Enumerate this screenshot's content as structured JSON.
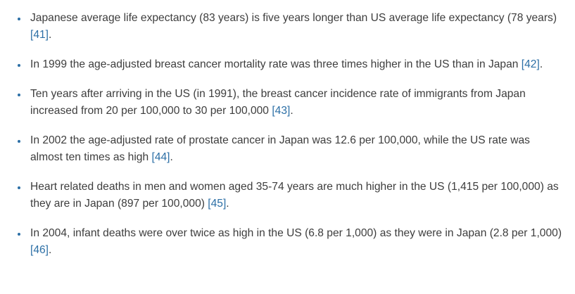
{
  "colors": {
    "text": "#3d3d3d",
    "link": "#2c6fa6",
    "bullet": "#2c6fa6"
  },
  "items": [
    {
      "text": "Japanese average life expectancy (83 years) is five years longer than US average life expectancy (78 years) ",
      "citation": "[41]",
      "suffix": "."
    },
    {
      "text": "In 1999 the age-adjusted breast cancer mortality rate was three times higher in the US than in Japan ",
      "citation": "[42]",
      "suffix": "."
    },
    {
      "text": "Ten years after arriving in the US (in 1991), the breast cancer incidence rate of immigrants from Japan increased from 20 per 100,000 to 30 per 100,000 ",
      "citation": "[43]",
      "suffix": "."
    },
    {
      "text": "In 2002 the age-adjusted rate of prostate cancer in Japan was 12.6 per 100,000, while the US rate was almost ten times as high ",
      "citation": "[44]",
      "suffix": "."
    },
    {
      "text": "Heart related deaths in men and women aged 35-74 years are much higher in the US (1,415 per 100,000) as they are in Japan (897 per 100,000) ",
      "citation": "[45]",
      "suffix": "."
    },
    {
      "text": "In 2004, infant deaths were over twice as high in the US (6.8 per 1,000) as they were in Japan (2.8 per 1,000) ",
      "citation": "[46]",
      "suffix": "."
    }
  ]
}
